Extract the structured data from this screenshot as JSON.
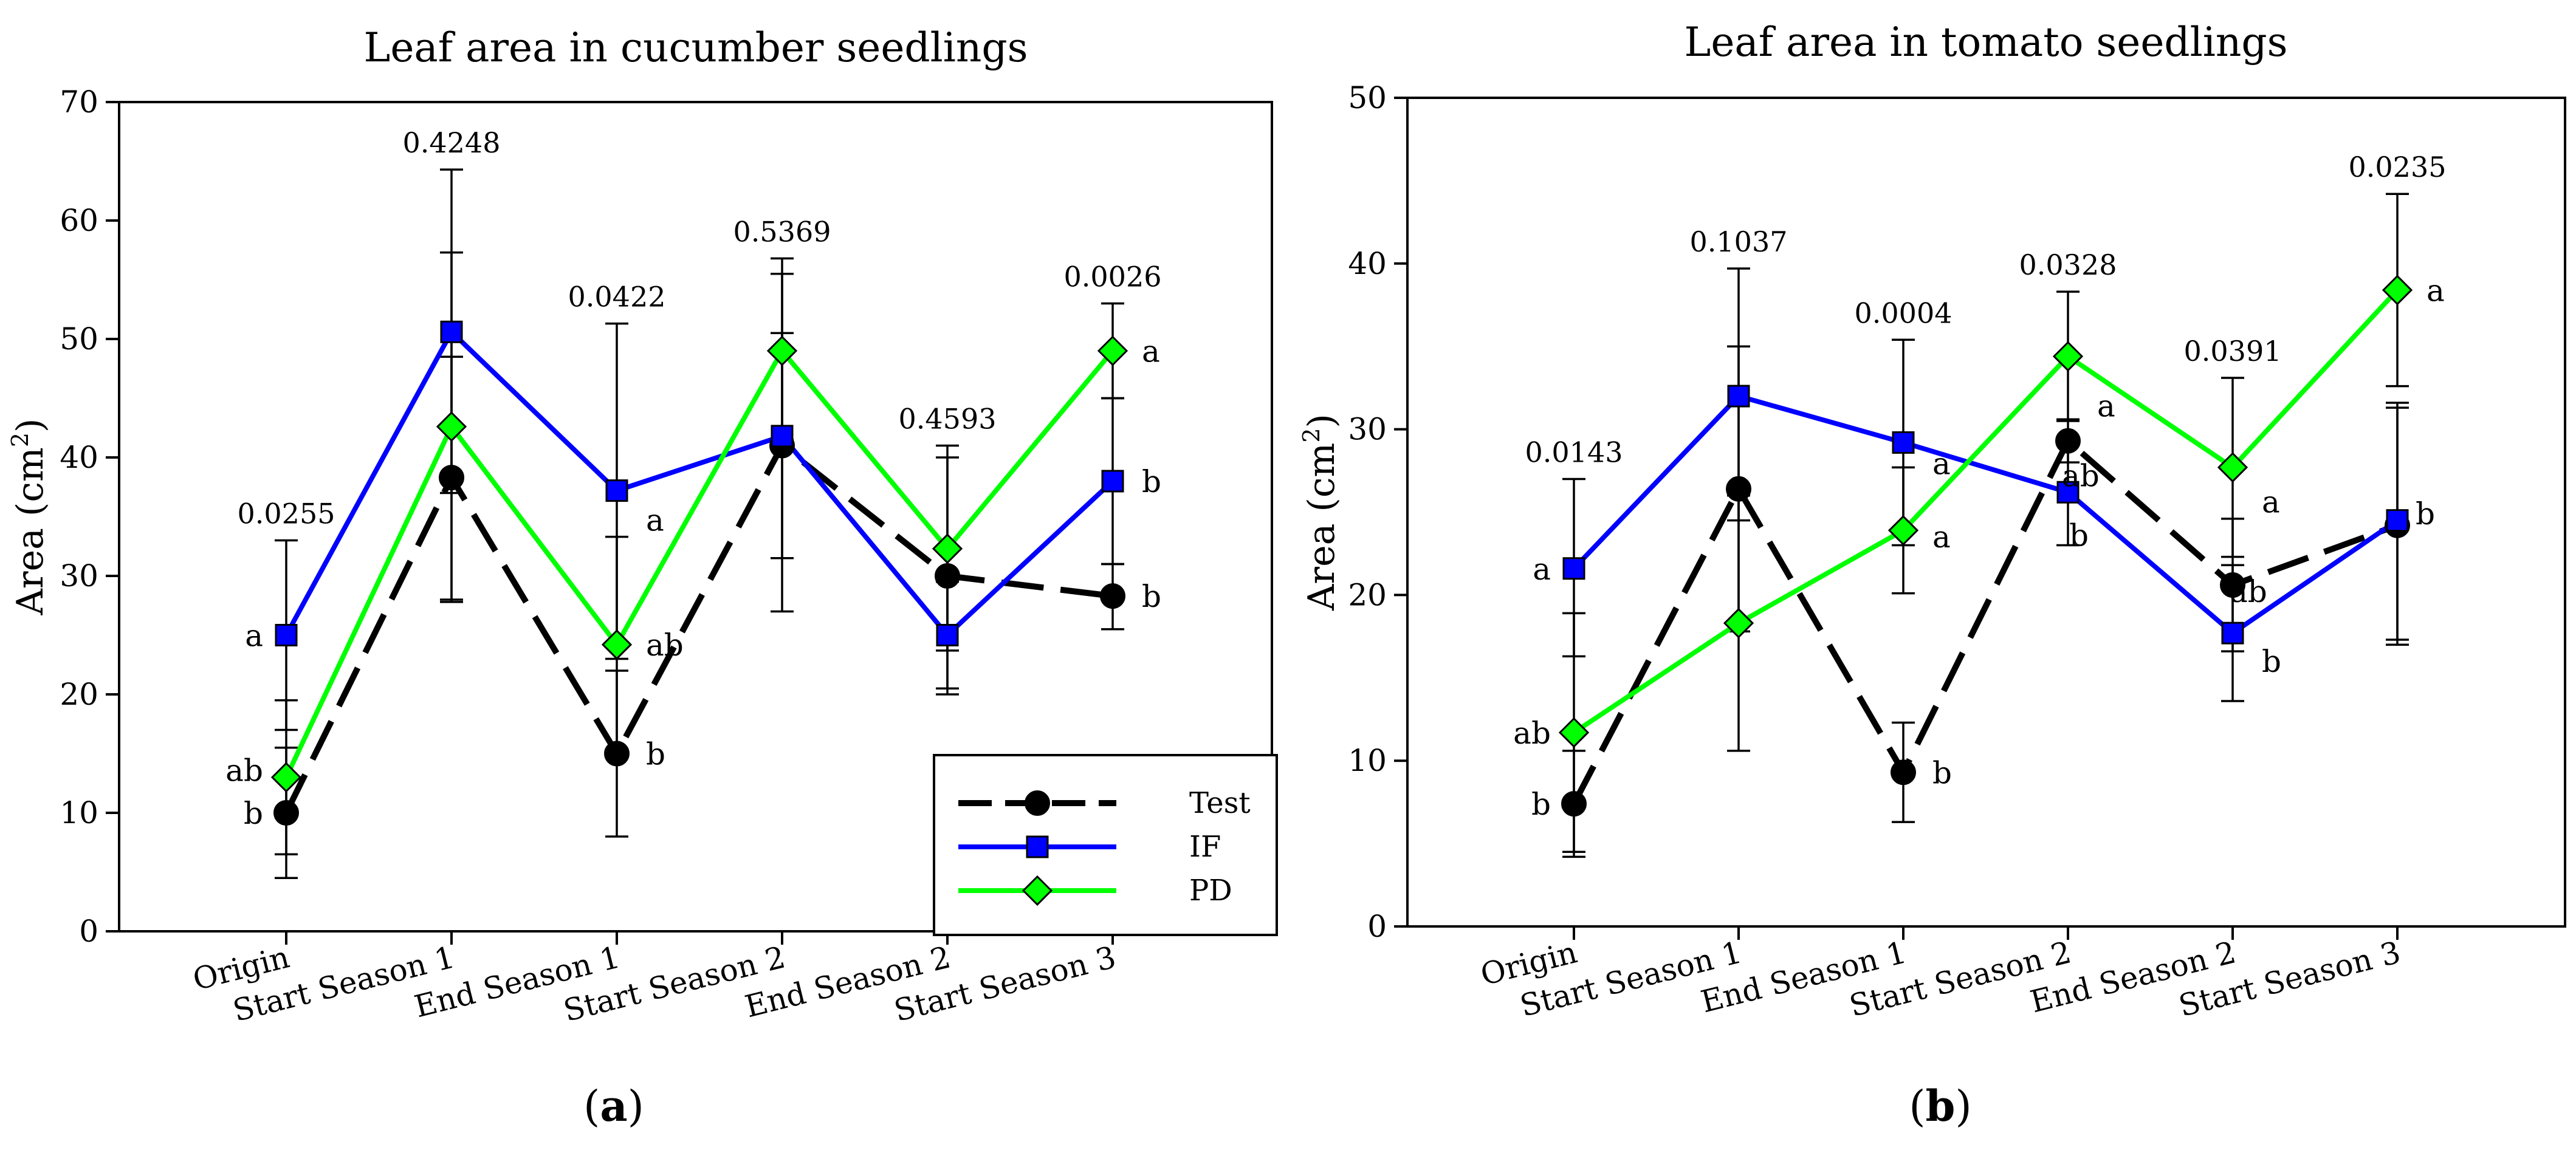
{
  "chart_data": [
    {
      "type": "line",
      "title": "Leaf area in cucumber seedlings",
      "panel_label": "a",
      "ylabel": "Area (cm",
      "ylabel_sup": "2",
      "ylabel_close": ")",
      "ylim": [
        0,
        70
      ],
      "yticks": [
        0,
        10,
        20,
        30,
        40,
        50,
        60,
        70
      ],
      "categories": [
        "Origin",
        "Start Season 1",
        "End Season 1",
        "Start Season 2",
        "End Season 2",
        "Start Season 3"
      ],
      "p_values": [
        "0.0255",
        "0.4248",
        "0.0422",
        "0.5369",
        "0.4593",
        "0.0026"
      ],
      "series": [
        {
          "name": "Test",
          "color": "#000000",
          "marker": "circle",
          "dashed": true,
          "values": [
            10,
            38.3,
            15,
            41,
            30,
            28.3
          ],
          "err": [
            [
              4.5,
              15.5
            ],
            [
              28,
              48.5
            ],
            [
              8,
              22
            ],
            [
              31.5,
              50.5
            ],
            [
              20,
              40
            ],
            [
              25.5,
              31
            ]
          ],
          "letters": [
            "b",
            "",
            "b",
            "",
            "",
            "b"
          ]
        },
        {
          "name": "IF",
          "color": "#0000ff",
          "marker": "square",
          "dashed": false,
          "values": [
            25,
            50.6,
            37.2,
            41.8,
            25,
            38
          ],
          "err": [
            [
              17,
              33
            ],
            [
              37,
              64.3
            ],
            [
              23,
              51.3
            ],
            [
              27,
              56.8
            ],
            [
              20.5,
              29.5
            ],
            [
              31,
              45
            ]
          ],
          "letters": [
            "a",
            "",
            "a",
            "",
            "",
            "b"
          ]
        },
        {
          "name": "PD",
          "color": "#00ff00",
          "marker": "diamond",
          "dashed": false,
          "values": [
            13,
            42.6,
            24.2,
            49,
            32.3,
            49
          ],
          "err": [
            [
              6.5,
              19.5
            ],
            [
              27.8,
              57.3
            ],
            [
              15,
              33.3
            ],
            [
              41.5,
              55.5
            ],
            [
              23.7,
              41
            ],
            [
              45,
              53
            ]
          ],
          "letters": [
            "ab",
            "",
            "ab",
            "",
            "",
            "a"
          ]
        }
      ],
      "legend_position": "bottom-right"
    },
    {
      "type": "line",
      "title": "Leaf area in tomato seedlings",
      "panel_label": "b",
      "ylabel": "Area (cm",
      "ylabel_sup": "2",
      "ylabel_close": ")",
      "ylim": [
        0,
        50
      ],
      "yticks": [
        0,
        10,
        20,
        30,
        40,
        50
      ],
      "categories": [
        "Origin",
        "Start Season 1",
        "End Season 1",
        "Start Season 2",
        "End Season 2",
        "Start Season 3"
      ],
      "p_values": [
        "0.0143",
        "0.1037",
        "0.0004",
        "0.0328",
        "0.0391",
        "0.0235"
      ],
      "series": [
        {
          "name": "Test",
          "color": "#000000",
          "marker": "circle",
          "dashed": true,
          "values": [
            7.4,
            26.4,
            9.3,
            29.3,
            20.6,
            24.2
          ],
          "err": [
            [
              4.2,
              10.6
            ],
            [
              17.8,
              35
            ],
            [
              6.3,
              12.3
            ],
            [
              28,
              30.6
            ],
            [
              16.6,
              24.6
            ],
            [
              17,
              31.3
            ]
          ],
          "letters": [
            "b",
            "",
            "b",
            "a",
            "ab",
            "b"
          ]
        },
        {
          "name": "IF",
          "color": "#0000ff",
          "marker": "square",
          "dashed": false,
          "values": [
            21.6,
            32,
            29.2,
            26.2,
            17.7,
            24.5
          ],
          "err": [
            [
              16.3,
              27
            ],
            [
              24.5,
              39.7
            ],
            [
              23,
              35.4
            ],
            [
              23,
              29.5
            ],
            [
              13.6,
              21.8
            ],
            [
              17.3,
              31.6
            ]
          ],
          "letters": [
            "a",
            "",
            "a",
            "ab",
            "b",
            ""
          ]
        },
        {
          "name": "PD",
          "color": "#00ff00",
          "marker": "diamond",
          "dashed": false,
          "values": [
            11.7,
            18.3,
            23.9,
            34.4,
            27.7,
            38.4
          ],
          "err": [
            [
              4.5,
              18.9
            ],
            [
              10.6,
              26
            ],
            [
              20.1,
              27.7
            ],
            [
              30.5,
              38.3
            ],
            [
              22.3,
              33.1
            ],
            [
              32.6,
              44.2
            ]
          ],
          "letters": [
            "ab",
            "",
            "a",
            "",
            "a",
            "a"
          ]
        }
      ]
    }
  ]
}
